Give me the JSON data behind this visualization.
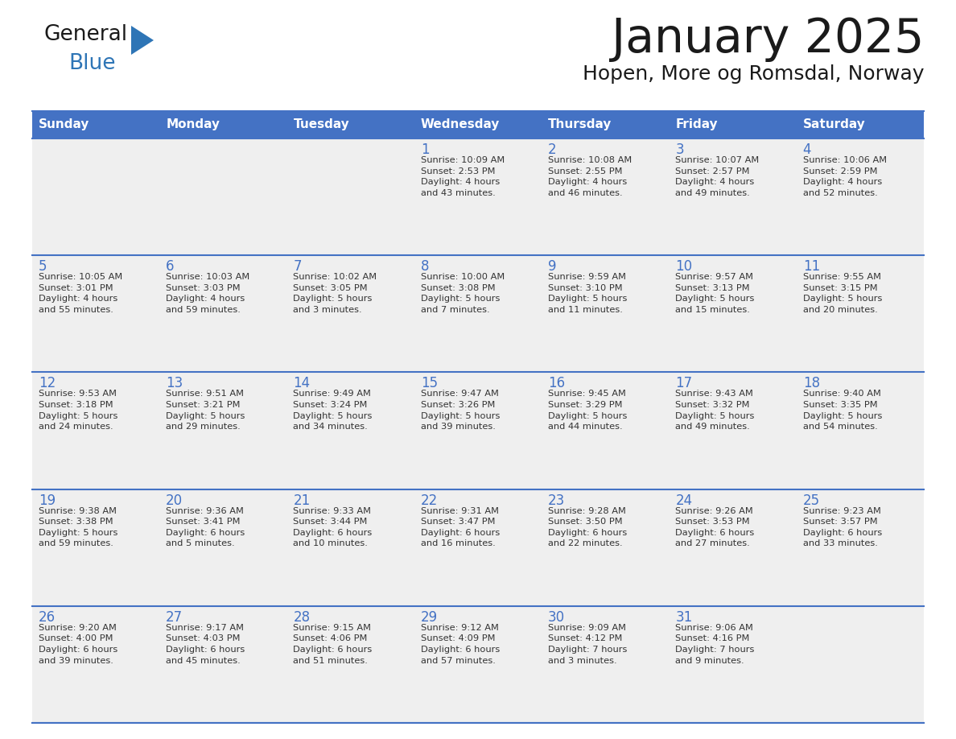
{
  "title": "January 2025",
  "subtitle": "Hopen, More og Romsdal, Norway",
  "days_of_week": [
    "Sunday",
    "Monday",
    "Tuesday",
    "Wednesday",
    "Thursday",
    "Friday",
    "Saturday"
  ],
  "header_bg": "#4472C4",
  "header_text": "#FFFFFF",
  "cell_bg": "#EFEFEF",
  "cell_text": "#333333",
  "day_num_color": "#4472C4",
  "border_color": "#4472C4",
  "separator_color": "#C0C0C0",
  "title_color": "#1a1a1a",
  "subtitle_color": "#1a1a1a",
  "logo_general_color": "#1a1a1a",
  "logo_blue_color": "#2E75B6",
  "calendar": [
    [
      {
        "day": "",
        "info": ""
      },
      {
        "day": "",
        "info": ""
      },
      {
        "day": "",
        "info": ""
      },
      {
        "day": "1",
        "info": "Sunrise: 10:09 AM\nSunset: 2:53 PM\nDaylight: 4 hours\nand 43 minutes."
      },
      {
        "day": "2",
        "info": "Sunrise: 10:08 AM\nSunset: 2:55 PM\nDaylight: 4 hours\nand 46 minutes."
      },
      {
        "day": "3",
        "info": "Sunrise: 10:07 AM\nSunset: 2:57 PM\nDaylight: 4 hours\nand 49 minutes."
      },
      {
        "day": "4",
        "info": "Sunrise: 10:06 AM\nSunset: 2:59 PM\nDaylight: 4 hours\nand 52 minutes."
      }
    ],
    [
      {
        "day": "5",
        "info": "Sunrise: 10:05 AM\nSunset: 3:01 PM\nDaylight: 4 hours\nand 55 minutes."
      },
      {
        "day": "6",
        "info": "Sunrise: 10:03 AM\nSunset: 3:03 PM\nDaylight: 4 hours\nand 59 minutes."
      },
      {
        "day": "7",
        "info": "Sunrise: 10:02 AM\nSunset: 3:05 PM\nDaylight: 5 hours\nand 3 minutes."
      },
      {
        "day": "8",
        "info": "Sunrise: 10:00 AM\nSunset: 3:08 PM\nDaylight: 5 hours\nand 7 minutes."
      },
      {
        "day": "9",
        "info": "Sunrise: 9:59 AM\nSunset: 3:10 PM\nDaylight: 5 hours\nand 11 minutes."
      },
      {
        "day": "10",
        "info": "Sunrise: 9:57 AM\nSunset: 3:13 PM\nDaylight: 5 hours\nand 15 minutes."
      },
      {
        "day": "11",
        "info": "Sunrise: 9:55 AM\nSunset: 3:15 PM\nDaylight: 5 hours\nand 20 minutes."
      }
    ],
    [
      {
        "day": "12",
        "info": "Sunrise: 9:53 AM\nSunset: 3:18 PM\nDaylight: 5 hours\nand 24 minutes."
      },
      {
        "day": "13",
        "info": "Sunrise: 9:51 AM\nSunset: 3:21 PM\nDaylight: 5 hours\nand 29 minutes."
      },
      {
        "day": "14",
        "info": "Sunrise: 9:49 AM\nSunset: 3:24 PM\nDaylight: 5 hours\nand 34 minutes."
      },
      {
        "day": "15",
        "info": "Sunrise: 9:47 AM\nSunset: 3:26 PM\nDaylight: 5 hours\nand 39 minutes."
      },
      {
        "day": "16",
        "info": "Sunrise: 9:45 AM\nSunset: 3:29 PM\nDaylight: 5 hours\nand 44 minutes."
      },
      {
        "day": "17",
        "info": "Sunrise: 9:43 AM\nSunset: 3:32 PM\nDaylight: 5 hours\nand 49 minutes."
      },
      {
        "day": "18",
        "info": "Sunrise: 9:40 AM\nSunset: 3:35 PM\nDaylight: 5 hours\nand 54 minutes."
      }
    ],
    [
      {
        "day": "19",
        "info": "Sunrise: 9:38 AM\nSunset: 3:38 PM\nDaylight: 5 hours\nand 59 minutes."
      },
      {
        "day": "20",
        "info": "Sunrise: 9:36 AM\nSunset: 3:41 PM\nDaylight: 6 hours\nand 5 minutes."
      },
      {
        "day": "21",
        "info": "Sunrise: 9:33 AM\nSunset: 3:44 PM\nDaylight: 6 hours\nand 10 minutes."
      },
      {
        "day": "22",
        "info": "Sunrise: 9:31 AM\nSunset: 3:47 PM\nDaylight: 6 hours\nand 16 minutes."
      },
      {
        "day": "23",
        "info": "Sunrise: 9:28 AM\nSunset: 3:50 PM\nDaylight: 6 hours\nand 22 minutes."
      },
      {
        "day": "24",
        "info": "Sunrise: 9:26 AM\nSunset: 3:53 PM\nDaylight: 6 hours\nand 27 minutes."
      },
      {
        "day": "25",
        "info": "Sunrise: 9:23 AM\nSunset: 3:57 PM\nDaylight: 6 hours\nand 33 minutes."
      }
    ],
    [
      {
        "day": "26",
        "info": "Sunrise: 9:20 AM\nSunset: 4:00 PM\nDaylight: 6 hours\nand 39 minutes."
      },
      {
        "day": "27",
        "info": "Sunrise: 9:17 AM\nSunset: 4:03 PM\nDaylight: 6 hours\nand 45 minutes."
      },
      {
        "day": "28",
        "info": "Sunrise: 9:15 AM\nSunset: 4:06 PM\nDaylight: 6 hours\nand 51 minutes."
      },
      {
        "day": "29",
        "info": "Sunrise: 9:12 AM\nSunset: 4:09 PM\nDaylight: 6 hours\nand 57 minutes."
      },
      {
        "day": "30",
        "info": "Sunrise: 9:09 AM\nSunset: 4:12 PM\nDaylight: 7 hours\nand 3 minutes."
      },
      {
        "day": "31",
        "info": "Sunrise: 9:06 AM\nSunset: 4:16 PM\nDaylight: 7 hours\nand 9 minutes."
      },
      {
        "day": "",
        "info": ""
      }
    ]
  ]
}
